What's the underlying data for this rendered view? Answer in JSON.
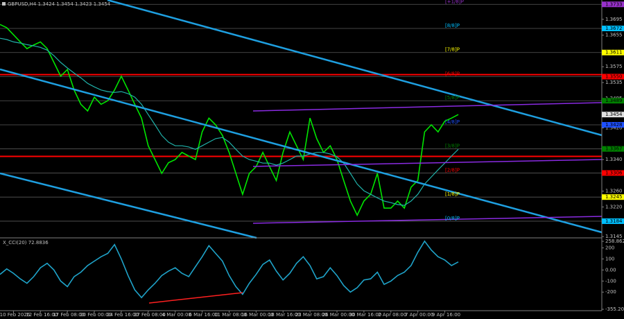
{
  "chart_data": [
    {
      "type": "line",
      "title": "GBPUSD,H4  1.3424 1.3454 1.3423 1.3454",
      "xlim": [
        0,
        89.3
      ],
      "ylim": [
        1.3147,
        1.3744
      ],
      "yticks": [
        1.3695,
        1.3655,
        1.3575,
        1.3535,
        1.3495,
        {
          "value": 1.342,
          "label": "1.3420"
        },
        {
          "value": 1.334,
          "label": "1.3340"
        },
        {
          "value": 1.326,
          "label": "1.3260"
        },
        {
          "value": 1.322,
          "label": "1.3220"
        },
        1.3145
      ],
      "series": [
        {
          "color": "#00e600",
          "values": [
            1.3682,
            1.3674,
            1.3656,
            1.3638,
            1.3621,
            1.363,
            1.3638,
            1.3621,
            1.3586,
            1.3551,
            1.3568,
            1.3516,
            1.348,
            1.3463,
            1.3498,
            1.348,
            1.3489,
            1.3516,
            1.3551,
            1.3516,
            1.348,
            1.3445,
            1.3375,
            1.334,
            1.3305,
            1.3332,
            1.334,
            1.3358,
            1.3349,
            1.334,
            1.341,
            1.3445,
            1.3428,
            1.3401,
            1.3358,
            1.3305,
            1.3252,
            1.3305,
            1.3322,
            1.3358,
            1.3322,
            1.3287,
            1.3358,
            1.341,
            1.3375,
            1.334,
            1.3445,
            1.3393,
            1.3358,
            1.3375,
            1.334,
            1.3287,
            1.3235,
            1.3199,
            1.3235,
            1.3252,
            1.3305,
            1.3217,
            1.3217,
            1.3235,
            1.3217,
            1.327,
            1.3287,
            1.341,
            1.3428,
            1.341,
            1.3437,
            1.3445,
            1.3454
          ]
        },
        {
          "color": "#20b2aa",
          "values": [
            1.3647,
            1.3644,
            1.3638,
            1.3635,
            1.3631,
            1.3628,
            1.3624,
            1.3617,
            1.3603,
            1.3586,
            1.3572,
            1.3559,
            1.3547,
            1.3533,
            1.3524,
            1.3516,
            1.3512,
            1.351,
            1.3512,
            1.3507,
            1.3498,
            1.348,
            1.3454,
            1.3428,
            1.3401,
            1.3384,
            1.3375,
            1.3375,
            1.3372,
            1.3366,
            1.3375,
            1.3384,
            1.3393,
            1.3396,
            1.3384,
            1.3366,
            1.3349,
            1.334,
            1.3336,
            1.3331,
            1.3331,
            1.3326,
            1.3331,
            1.334,
            1.3349,
            1.3349,
            1.3354,
            1.3358,
            1.3358,
            1.3354,
            1.3347,
            1.3331,
            1.3305,
            1.3278,
            1.3261,
            1.3252,
            1.3243,
            1.3235,
            1.3231,
            1.3226,
            1.3224,
            1.3235,
            1.3252,
            1.3278,
            1.3296,
            1.3314,
            1.3331,
            1.3349,
            1.3366
          ]
        }
      ],
      "levels": [
        {
          "name": "[+1/8]P",
          "value": 1.3733,
          "color": "#9932cc"
        },
        {
          "name": "[8/8]P",
          "value": 1.3672,
          "color": "#00bfff"
        },
        {
          "name": "[7/8]P",
          "value": 1.3611,
          "color": "#ffff00"
        },
        {
          "name": "[6/8]P",
          "value": 1.355,
          "value_label": "1.3550",
          "color": "#ff0000"
        },
        {
          "name": "[5/8]P",
          "value": 1.3489,
          "color": "#008000"
        },
        {
          "name": "[4/8]P",
          "value": 1.3428,
          "color": "#1e50ff"
        },
        {
          "name": "[3/8]P",
          "value": 1.3367,
          "color": "#008000"
        },
        {
          "name": "[2/8]P",
          "value": 1.3306,
          "color": "#ff0000"
        },
        {
          "name": "[1/8]P",
          "value": 1.3245,
          "color": "#ffff00"
        },
        {
          "name": "[0/8]P",
          "value": 1.3184,
          "color": "#00bfff"
        }
      ],
      "red_lines": [
        1.3555,
        1.3348
      ],
      "current_price": 1.3454
    },
    {
      "type": "line",
      "title": "X_CCI(20) 72.8836",
      "ylim": [
        -355.206,
        258.8623
      ],
      "yticks": [
        258.8623,
        200,
        100,
        {
          "value": 0,
          "label": "0.00"
        },
        -100,
        -200,
        -355.206
      ],
      "xlim": [
        0,
        89.3
      ],
      "xticks": [
        {
          "value": 2,
          "label": "10 Feb 2026"
        },
        {
          "value": 6,
          "label": "12 Feb 16:00"
        },
        {
          "value": 10,
          "label": "17 Feb 08:00"
        },
        {
          "value": 14,
          "label": "20 Feb 00:00"
        },
        {
          "value": 18,
          "label": "24 Feb 16:00"
        },
        {
          "value": 22,
          "label": "27 Feb 08:00"
        },
        {
          "value": 26,
          "label": "4 Mar 00:00"
        },
        {
          "value": 30,
          "label": "6 Mar 16:00"
        },
        {
          "value": 34,
          "label": "11 Mar 08:00"
        },
        {
          "value": 38,
          "label": "16 Mar 00:00"
        },
        {
          "value": 42,
          "label": "18 Mar 16:00"
        },
        {
          "value": 46,
          "label": "23 Mar 08:00"
        },
        {
          "value": 50,
          "label": "26 Mar 00:00"
        },
        {
          "value": 54,
          "label": "30 Mar 16:00"
        },
        {
          "value": 58,
          "label": "2 Apr 08:00"
        },
        {
          "value": 62,
          "label": "7 Apr 00:00"
        },
        {
          "value": 66,
          "label": "9 Apr 16:00"
        }
      ],
      "series": [
        {
          "color": "#1fa3c9",
          "values": [
            -40,
            10,
            -30,
            -80,
            -120,
            -60,
            20,
            60,
            0,
            -100,
            -150,
            -60,
            -20,
            40,
            80,
            120,
            150,
            230,
            100,
            -50,
            -180,
            -250,
            -180,
            -120,
            -50,
            -10,
            20,
            -30,
            -60,
            30,
            120,
            220,
            150,
            80,
            -50,
            -150,
            -220,
            -120,
            -40,
            50,
            90,
            -10,
            -90,
            -30,
            60,
            120,
            40,
            -80,
            -60,
            20,
            -50,
            -140,
            -200,
            -160,
            -90,
            -80,
            -20,
            -130,
            -100,
            -50,
            -20,
            40,
            160,
            260,
            180,
            120,
            90,
            40,
            72.8836
          ]
        }
      ]
    }
  ]
}
